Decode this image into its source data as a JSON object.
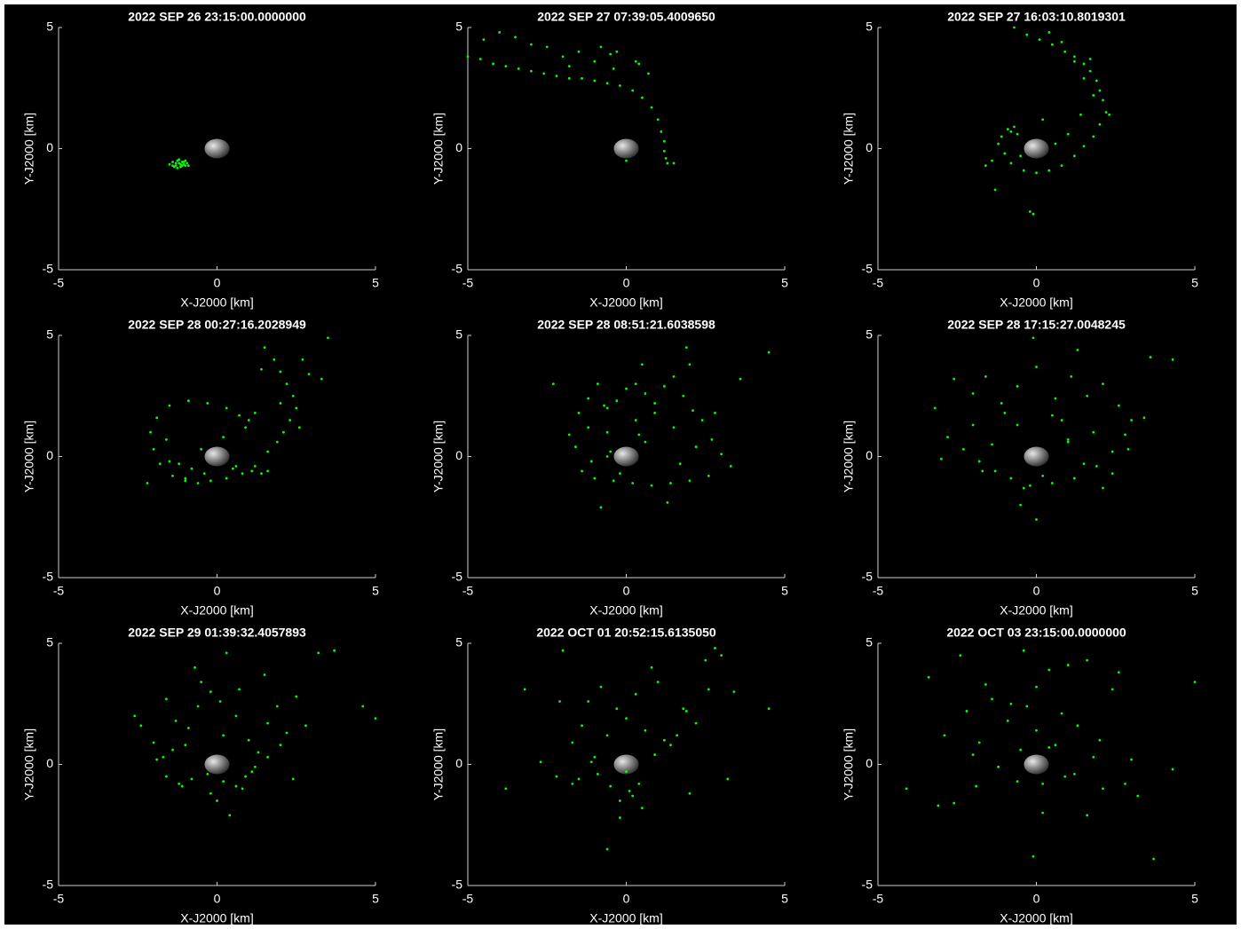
{
  "chart_data": [
    {
      "type": "scatter",
      "title": "2022 SEP 26 23:15:00.0000000",
      "x_label": "X-J2000 [km]",
      "y_label": "Y-J2000 [km]",
      "xlim": [
        -5,
        5
      ],
      "ylim": [
        -5,
        5
      ],
      "xticks": [
        -5,
        0,
        5
      ],
      "yticks": [
        -5,
        0,
        5
      ],
      "series": [
        {
          "color": "#00ff00",
          "x": [
            -1.5,
            -1.4,
            -1.3,
            -1.25,
            -1.2,
            -1.15,
            -1.1,
            -1.05,
            -1.0,
            -0.95,
            -1.35,
            -1.2,
            -1.1,
            -1.0,
            -1.3,
            -1.25,
            -1.15,
            -0.9,
            -1.4,
            -1.05
          ],
          "y": [
            -0.65,
            -0.55,
            -0.7,
            -0.5,
            -0.6,
            -0.75,
            -0.55,
            -0.65,
            -0.7,
            -0.6,
            -0.75,
            -0.45,
            -0.7,
            -0.5,
            -0.6,
            -0.8,
            -0.65,
            -0.7,
            -0.7,
            -0.55
          ]
        }
      ]
    },
    {
      "type": "scatter",
      "title": "2022 SEP 27 07:39:05.4009650",
      "x_label": "X-J2000 [km]",
      "y_label": "Y-J2000 [km]",
      "xlim": [
        -5,
        5
      ],
      "ylim": [
        -5,
        5
      ],
      "xticks": [
        -5,
        0,
        5
      ],
      "yticks": [
        -5,
        0,
        5
      ],
      "series": [
        {
          "color": "#00ff00",
          "x": [
            -5,
            -4.6,
            -4.2,
            -3.8,
            -3.4,
            -3,
            -2.6,
            -2.2,
            -1.8,
            -1.4,
            -1,
            -0.6,
            -0.2,
            0.2,
            0.5,
            0.8,
            1,
            1.1,
            1.2,
            1.2,
            1.25,
            1.3,
            1.5,
            -4.5,
            -3.5,
            -2.5,
            -1.5,
            -0.5,
            0.3,
            0.7,
            -1.8,
            -1,
            -0.3,
            0.4,
            -4,
            -3,
            -2,
            -0.8,
            -0.4,
            0
          ],
          "y": [
            3.8,
            3.7,
            3.5,
            3.4,
            3.3,
            3.2,
            3.1,
            3,
            2.9,
            2.9,
            2.8,
            2.7,
            2.6,
            2.4,
            2.1,
            1.7,
            1.2,
            0.7,
            0.3,
            -0.1,
            -0.4,
            -0.6,
            -0.6,
            4.5,
            4.6,
            4.2,
            4.0,
            3.9,
            3.6,
            3.1,
            3.4,
            3.6,
            4.0,
            3.5,
            4.8,
            4.3,
            3.8,
            4.2,
            3.3,
            -0.5
          ]
        }
      ]
    },
    {
      "type": "scatter",
      "title": "2022 SEP 27 16:03:10.8019301",
      "x_label": "X-J2000 [km]",
      "y_label": "Y-J2000 [km]",
      "xlim": [
        -5,
        5
      ],
      "ylim": [
        -5,
        5
      ],
      "xticks": [
        -5,
        0,
        5
      ],
      "yticks": [
        -5,
        0,
        5
      ],
      "series": [
        {
          "color": "#00ff00",
          "x": [
            -0.7,
            -0.3,
            0.1,
            0.5,
            0.9,
            1.2,
            1.5,
            1.7,
            1.9,
            2.0,
            2.1,
            2.2,
            2.0,
            1.8,
            1.5,
            1.2,
            0.8,
            0.4,
            0,
            -0.4,
            -0.8,
            -1.0,
            -1.2,
            -1.1,
            -0.9,
            -0.7,
            -0.8,
            0.4,
            0.8,
            1.2,
            1.5,
            1.8,
            1.4,
            1.0,
            0.6,
            -1.4,
            -1.6,
            -0.2,
            -0.1,
            1.7,
            2.3,
            0.2,
            -0.5,
            -0.6,
            -1.3
          ],
          "y": [
            5,
            4.7,
            4.5,
            4.3,
            4.0,
            3.8,
            3.5,
            3.2,
            2.8,
            2.4,
            2.0,
            1.5,
            1.0,
            0.5,
            0.1,
            -0.3,
            -0.7,
            -0.9,
            -1.0,
            -0.9,
            -0.6,
            -0.2,
            0.2,
            0.5,
            0.8,
            0.9,
            0.7,
            4.8,
            4.4,
            3.6,
            2.9,
            2.2,
            1.4,
            0.6,
            0.2,
            -0.5,
            -0.7,
            -2.6,
            -2.7,
            3.7,
            1.4,
            1.2,
            -0.3,
            0.6,
            -1.7
          ]
        }
      ]
    },
    {
      "type": "scatter",
      "title": "2022 SEP 28 00:27:16.2028949",
      "x_label": "X-J2000 [km]",
      "y_label": "Y-J2000 [km]",
      "xlim": [
        -5,
        5
      ],
      "ylim": [
        -5,
        5
      ],
      "xticks": [
        -5,
        0,
        5
      ],
      "yticks": [
        -5,
        0,
        5
      ],
      "series": [
        {
          "color": "#00ff00",
          "x": [
            1.5,
            1.8,
            2.0,
            2.2,
            2.4,
            2.5,
            2.3,
            2.1,
            1.9,
            1.6,
            1.2,
            0.8,
            0.3,
            -0.2,
            -0.6,
            -1.0,
            -1.2,
            -0.8,
            -0.4,
            2.7,
            2.9,
            3.3,
            1.2,
            1.0,
            0.7,
            0.3,
            -0.3,
            -0.9,
            -1.5,
            -1.9,
            -2.1,
            -2.0,
            -1.8,
            -1.4,
            -1.0,
            0.6,
            1.1,
            1.4,
            1.6,
            0.9,
            -1.6,
            -2.2,
            -1.5,
            2.0,
            2.6,
            3.5,
            1.4,
            0.2,
            -0.5,
            0.5
          ],
          "y": [
            4.5,
            4.0,
            3.5,
            3.0,
            2.5,
            2.0,
            1.5,
            1.0,
            0.6,
            0.2,
            -0.4,
            -0.7,
            -0.9,
            -1.0,
            -1.1,
            -0.9,
            -0.3,
            -0.5,
            -0.7,
            4.0,
            3.4,
            3.2,
            1.8,
            1.5,
            1.7,
            2.0,
            2.2,
            2.3,
            2.1,
            1.6,
            1.0,
            0.3,
            -0.3,
            -0.8,
            -1.0,
            -0.4,
            -0.6,
            -0.7,
            -0.6,
            1.2,
            0.7,
            -1.1,
            -0.2,
            2.2,
            1.2,
            4.9,
            3.6,
            0.8,
            0.3,
            -0.5
          ]
        }
      ]
    },
    {
      "type": "scatter",
      "title": "2022 SEP 28 08:51:21.6038598",
      "x_label": "X-J2000 [km]",
      "y_label": "Y-J2000 [km]",
      "xlim": [
        -5,
        5
      ],
      "ylim": [
        -5,
        5
      ],
      "xticks": [
        -5,
        0,
        5
      ],
      "yticks": [
        -5,
        0,
        5
      ],
      "series": [
        {
          "color": "#00ff00",
          "x": [
            -2.3,
            -1.5,
            -1.2,
            -0.9,
            -0.6,
            -0.3,
            0,
            0.3,
            0.6,
            0.9,
            1.2,
            1.5,
            1.8,
            2.1,
            2.4,
            2.7,
            3.0,
            3.3,
            2.6,
            2.0,
            1.4,
            0.8,
            0.2,
            -0.4,
            -1.0,
            -1.4,
            -1.6,
            -1.2,
            -0.6,
            0.3,
            0.9,
            1.5,
            2.2,
            -0.5,
            -0.6,
            0.5,
            1.9,
            3.6,
            4.5,
            -0.8,
            1.3,
            -1.1,
            -0.2,
            2.8,
            1.7,
            0.6,
            -1.8,
            -0.7,
            0.4,
            2.0
          ],
          "y": [
            3.0,
            1.8,
            2.4,
            3.0,
            2.0,
            2.3,
            2.8,
            3.0,
            2.6,
            2.2,
            2.9,
            3.3,
            2.5,
            1.9,
            1.5,
            0.7,
            0.1,
            -0.4,
            -0.8,
            -1.0,
            -1.1,
            -1.2,
            -1.1,
            -1.0,
            -0.9,
            -0.6,
            0.4,
            1.2,
            1.0,
            1.5,
            1.8,
            1.2,
            0.4,
            0.2,
            0,
            3.8,
            4.5,
            3.2,
            4.3,
            -2.1,
            -1.9,
            -0.2,
            -0.7,
            1.8,
            -0.3,
            0.6,
            0.9,
            2.1,
            0.9,
            3.8
          ]
        }
      ]
    },
    {
      "type": "scatter",
      "title": "2022 SEP 28 17:15:27.0048245",
      "x_label": "X-J2000 [km]",
      "y_label": "Y-J2000 [km]",
      "xlim": [
        -5,
        5
      ],
      "ylim": [
        -5,
        5
      ],
      "xticks": [
        -5,
        0,
        5
      ],
      "yticks": [
        -5,
        0,
        5
      ],
      "series": [
        {
          "color": "#00ff00",
          "x": [
            -3.2,
            -2.6,
            -2.0,
            -1.6,
            -1.1,
            -0.6,
            0,
            0.6,
            1.1,
            1.6,
            2.1,
            2.6,
            3.0,
            3.4,
            2.8,
            2.4,
            1.9,
            1.2,
            0.5,
            -0.2,
            -0.8,
            -1.3,
            -1.8,
            -2.3,
            -2.8,
            -1.4,
            -0.6,
            1.0,
            1.0,
            2.4,
            0.2,
            -0.4,
            1.5,
            -2.0,
            -1.0,
            0.8,
            1.8,
            2.9,
            4.3,
            -0.5,
            0.0,
            2.1,
            -1.7,
            0.5,
            -0.1,
            1.3,
            -3.0,
            3.6
          ],
          "y": [
            2.0,
            3.2,
            2.6,
            3.3,
            2.2,
            2.9,
            3.7,
            2.4,
            3.3,
            2.5,
            3.0,
            2.1,
            1.5,
            1.6,
            0.9,
            0.2,
            -0.4,
            -0.9,
            -1.1,
            -1.2,
            -0.9,
            -0.6,
            -0.2,
            0.3,
            0.8,
            0.5,
            1.3,
            0.6,
            0.7,
            -0.7,
            -0.8,
            -1.3,
            -0.3,
            1.3,
            1.8,
            1.5,
            1.0,
            0.3,
            4.0,
            -2.0,
            -2.6,
            -1.3,
            -0.6,
            1.7,
            4.9,
            4.4,
            -0.1,
            4.1
          ]
        }
      ]
    },
    {
      "type": "scatter",
      "title": "2022 SEP 29 01:39:32.4057893",
      "x_label": "X-J2000 [km]",
      "y_label": "Y-J2000 [km]",
      "xlim": [
        -5,
        5
      ],
      "ylim": [
        -5,
        5
      ],
      "xticks": [
        -5,
        0,
        5
      ],
      "yticks": [
        -5,
        0,
        5
      ],
      "series": [
        {
          "color": "#00ff00",
          "x": [
            -2.4,
            -2.0,
            -1.7,
            -1.3,
            -1.0,
            -0.6,
            -0.2,
            0.2,
            0.6,
            1.0,
            1.3,
            1.6,
            1.9,
            2.2,
            2.5,
            2.8,
            3.2,
            3.7,
            1.2,
            0.9,
            0.6,
            0.2,
            -0.3,
            -0.8,
            -1.2,
            -1.6,
            -1.9,
            -1.4,
            -0.9,
            -0.5,
            0.1,
            0.7,
            1.1,
            -1.6,
            0.3,
            -0.7,
            0.4,
            5.0,
            4.6,
            -2.6,
            0.0,
            2.0,
            1.5,
            -1.1,
            0.8,
            -0.2,
            1.6,
            2.4
          ],
          "y": [
            1.6,
            0.9,
            0.3,
            1.8,
            0.8,
            2.4,
            3.0,
            1.2,
            2.0,
            1.0,
            0.5,
            1.7,
            2.4,
            1.3,
            2.8,
            1.6,
            4.6,
            4.7,
            -0.1,
            -0.5,
            -0.9,
            -0.7,
            -0.4,
            -0.6,
            -0.8,
            -0.5,
            0.2,
            0.6,
            1.5,
            3.4,
            2.6,
            3.1,
            -0.3,
            2.7,
            4.6,
            4.0,
            -2.1,
            1.9,
            2.4,
            2.0,
            -1.5,
            0.8,
            3.7,
            -0.9,
            -1.0,
            -1.2,
            0.3,
            -0.6
          ]
        }
      ]
    },
    {
      "type": "scatter",
      "title": "2022 OCT 01 20:52:15.6135050",
      "x_label": "X-J2000 [km]",
      "y_label": "Y-J2000 [km]",
      "xlim": [
        -5,
        5
      ],
      "ylim": [
        -5,
        5
      ],
      "xticks": [
        -5,
        0,
        5
      ],
      "yticks": [
        -5,
        0,
        5
      ],
      "series": [
        {
          "color": "#00ff00",
          "x": [
            -3.8,
            -2.7,
            -2.2,
            -1.7,
            -1.4,
            -1.0,
            -0.6,
            -0.3,
            0,
            0.3,
            0.6,
            1.0,
            1.4,
            1.8,
            2.2,
            2.6,
            3.0,
            3.4,
            4.5,
            0.1,
            0.2,
            -0.2,
            0.4,
            -0.9,
            -1.5,
            -2.0,
            -1.2,
            0.8,
            1.6,
            2.5,
            -0.5,
            -0.6,
            0.5,
            1.2,
            -2.1,
            -0.8,
            0.0,
            0.9,
            -3.2,
            3.2,
            -1.1,
            2.0,
            -0.2,
            1.9,
            -1.7,
            2.8
          ],
          "y": [
            -1.0,
            0.1,
            -0.5,
            0.9,
            1.6,
            0.3,
            1.2,
            2.3,
            1.9,
            2.9,
            1.4,
            3.4,
            0.8,
            2.3,
            1.7,
            3.1,
            4.5,
            3.0,
            2.3,
            -1.1,
            -1.3,
            -1.5,
            -0.8,
            -0.4,
            -0.6,
            4.7,
            2.6,
            4.0,
            1.2,
            4.3,
            -0.9,
            -3.5,
            -1.8,
            1.0,
            2.6,
            3.2,
            -0.3,
            0.4,
            3.1,
            -0.6,
            0.1,
            -1.2,
            -2.2,
            2.2,
            -0.8,
            4.8
          ]
        }
      ]
    },
    {
      "type": "scatter",
      "title": "2022 OCT 03 23:15:00.0000000",
      "x_label": "X-J2000 [km]",
      "y_label": "Y-J2000 [km]",
      "xlim": [
        -5,
        5
      ],
      "ylim": [
        -5,
        5
      ],
      "xticks": [
        -5,
        0,
        5
      ],
      "yticks": [
        -5,
        0,
        5
      ],
      "series": [
        {
          "color": "#00ff00",
          "x": [
            -4.1,
            -3.4,
            -2.9,
            -2.4,
            -2.0,
            -1.6,
            -1.2,
            -0.8,
            -0.4,
            0,
            0.4,
            0.8,
            1.2,
            1.6,
            2.0,
            2.4,
            2.8,
            3.2,
            3.7,
            4.3,
            5.0,
            -1.2,
            -0.5,
            0.2,
            0.6,
            1.3,
            -1.8,
            -0.9,
            0.9,
            1.8,
            -2.6,
            2.6,
            0.2,
            -0.1,
            3.0,
            -1.4,
            -0.3,
            1.0,
            -3.1,
            2.1,
            -2.2,
            1.6,
            -0.6,
            0.4,
            0.0,
            -1.9
          ],
          "y": [
            -1.0,
            3.6,
            1.2,
            4.5,
            0.4,
            3.3,
            -0.1,
            2.5,
            4.7,
            1.4,
            3.9,
            2.1,
            -0.4,
            4.3,
            1.0,
            3.1,
            -0.8,
            -1.3,
            -3.9,
            -0.2,
            3.4,
            -0.1,
            0.6,
            -0.8,
            0.8,
            1.6,
            0.9,
            1.8,
            -0.5,
            0.3,
            -1.6,
            3.8,
            -2.0,
            -3.8,
            0.2,
            2.7,
            2.4,
            4.1,
            -1.7,
            -1.0,
            2.2,
            -2.1,
            -0.7,
            0.7,
            3.2,
            -0.9
          ]
        }
      ]
    }
  ]
}
